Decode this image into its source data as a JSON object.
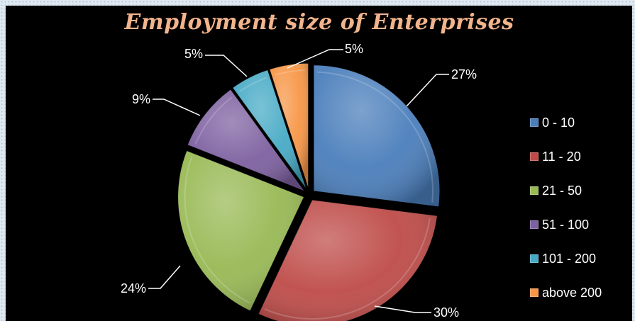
{
  "chart_data": {
    "type": "pie",
    "title": "Employment size of  Enterprises",
    "categories": [
      "0 - 10",
      "11 - 20",
      "21 - 50",
      "51 - 100",
      "101 - 200",
      "above 200"
    ],
    "values": [
      27,
      30,
      24,
      9,
      5,
      5
    ],
    "labels": [
      "27%",
      "30%",
      "24%",
      "9%",
      "5%",
      "5%"
    ],
    "colors": [
      "#4a7ebb",
      "#be4b48",
      "#98b954",
      "#7d60a0",
      "#46aac5",
      "#f79646"
    ],
    "legend_position": "right",
    "exploded": true
  }
}
